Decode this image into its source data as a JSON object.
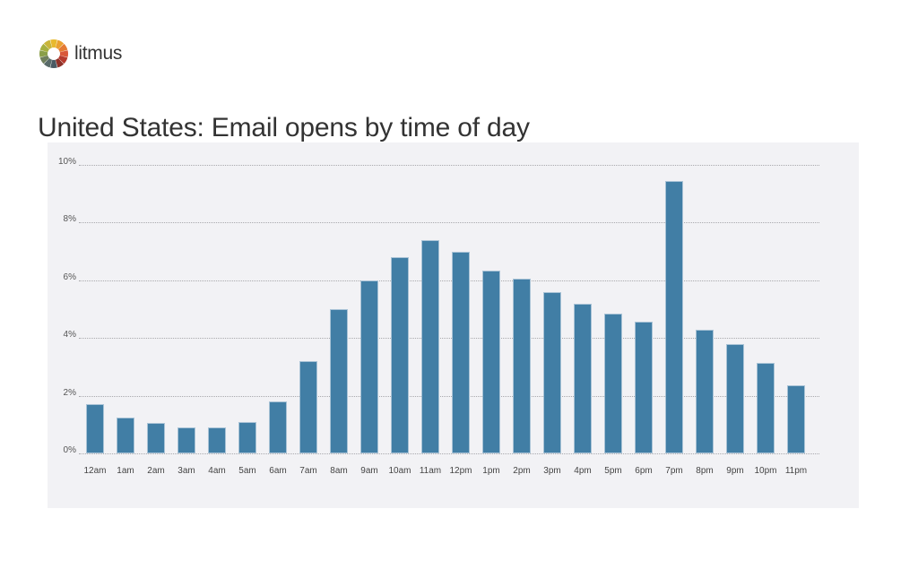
{
  "brand": {
    "name": "litmus",
    "colors": [
      "#e8b92e",
      "#eaa130",
      "#e57b34",
      "#d9583a",
      "#b63b2e",
      "#8f3128",
      "#4a5a63",
      "#596b69",
      "#6f7f5c",
      "#8a9f49",
      "#a6b03f",
      "#c9b53a"
    ]
  },
  "title": "United States: Email opens by time of day",
  "bar_color": "#417ea5",
  "chart_data": {
    "type": "bar",
    "title": "United States: Email opens by time of day",
    "xlabel": "",
    "ylabel": "",
    "ylim": [
      0,
      10
    ],
    "yticks": [
      "0%",
      "2%",
      "4%",
      "6%",
      "8%",
      "10%"
    ],
    "grid": true,
    "legend": null,
    "categories": [
      "12am",
      "1am",
      "2am",
      "3am",
      "4am",
      "5am",
      "6am",
      "7am",
      "8am",
      "9am",
      "10am",
      "11am",
      "12pm",
      "1pm",
      "2pm",
      "3pm",
      "4pm",
      "5pm",
      "6pm",
      "7pm",
      "8pm",
      "9pm",
      "10pm",
      "11pm"
    ],
    "values": [
      1.7,
      1.25,
      1.05,
      0.9,
      0.9,
      1.1,
      1.8,
      3.2,
      5.0,
      6.0,
      6.8,
      7.4,
      7.0,
      6.35,
      6.05,
      5.6,
      5.2,
      4.85,
      4.55,
      9.45,
      4.3,
      3.8,
      3.15,
      2.35
    ]
  }
}
